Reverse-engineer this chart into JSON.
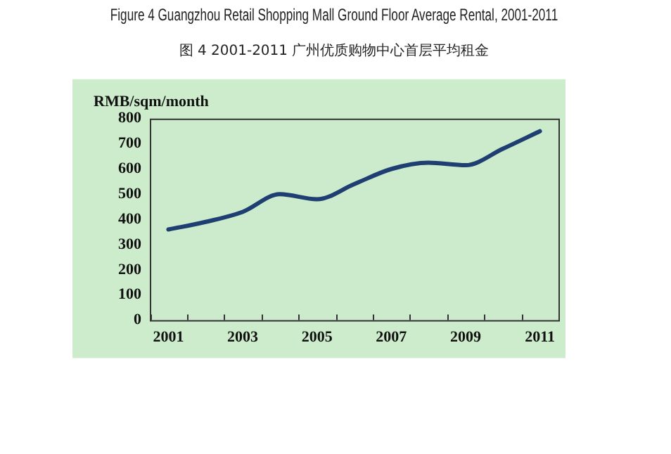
{
  "chart_data": {
    "type": "line",
    "title": "Figure 4 Guangzhou Retail Shopping Mall Ground Floor Average Rental, 2001-2011",
    "subtitle": "图 4 2001-2011 广州优质购物中心首层平均租金",
    "ylabel": "RMB/sqm/month",
    "categories": [
      "2001",
      null,
      "2003",
      null,
      "2005",
      null,
      "2007",
      null,
      "2009",
      null,
      "2011"
    ],
    "series": [
      {
        "color": "#1f3f73",
        "values": [
          360,
          390,
          430,
          500,
          480,
          540,
          600,
          625,
          615,
          680,
          750
        ]
      }
    ],
    "ylim": [
      0,
      800
    ],
    "yticks": [
      0,
      100,
      200,
      300,
      400,
      500,
      600,
      700,
      800
    ],
    "grid": false,
    "legend": false,
    "marker": "none",
    "line_style": "solid"
  }
}
